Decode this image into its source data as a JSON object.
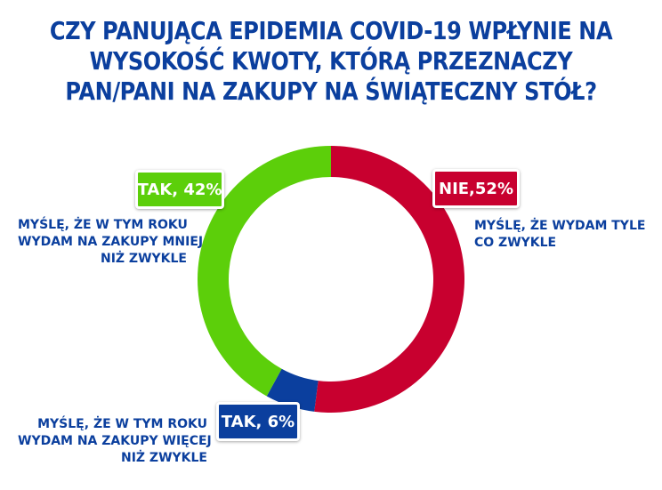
{
  "title": {
    "line1": "CZY PANUJĄCA EPIDEMIA COVID-19 WPŁYNIE NA",
    "line2": "WYSOKOŚĆ KWOTY, KTÓRĄ PRZEZNACZY",
    "line3": "PAN/PANI NA ZAKUPY NA ŚWIĄTECZNY STÓŁ?"
  },
  "colors": {
    "title": "#0b3f9e",
    "green": "#5ccf0a",
    "red": "#c8002f",
    "blue": "#0b3f9e"
  },
  "chart_data": {
    "type": "pie",
    "style": "donut",
    "title": "CZY PANUJĄCA EPIDEMIA COVID-19 WPŁYNIE NA WYSOKOŚĆ KWOTY, KTÓRĄ PRZEZNACZY PAN/PANI NA ZAKUPY NA ŚWIĄTECZNY STÓŁ?",
    "start": "top, clockwise",
    "slices": [
      {
        "key": "nie",
        "badge": "NIE,52%",
        "value": 52,
        "color": "#c8002f",
        "description": [
          "MYŚLĘ, ŻE WYDAM TYLE",
          "CO ZWYKLE"
        ]
      },
      {
        "key": "tak_more",
        "badge": "TAK, 6%",
        "value": 6,
        "color": "#0b3f9e",
        "description": [
          "MYŚLĘ, ŻE W TYM ROKU",
          "WYDAM NA ZAKUPY WIĘCEJ",
          "NIŻ ZWYKLE"
        ]
      },
      {
        "key": "tak_less",
        "badge": "TAK, 42%",
        "value": 42,
        "color": "#5ccf0a",
        "description": [
          "MYŚLĘ, ŻE W TYM ROKU",
          "WYDAM NA ZAKUPY MNIEJ",
          "NIŻ ZWYKLE"
        ]
      }
    ]
  }
}
